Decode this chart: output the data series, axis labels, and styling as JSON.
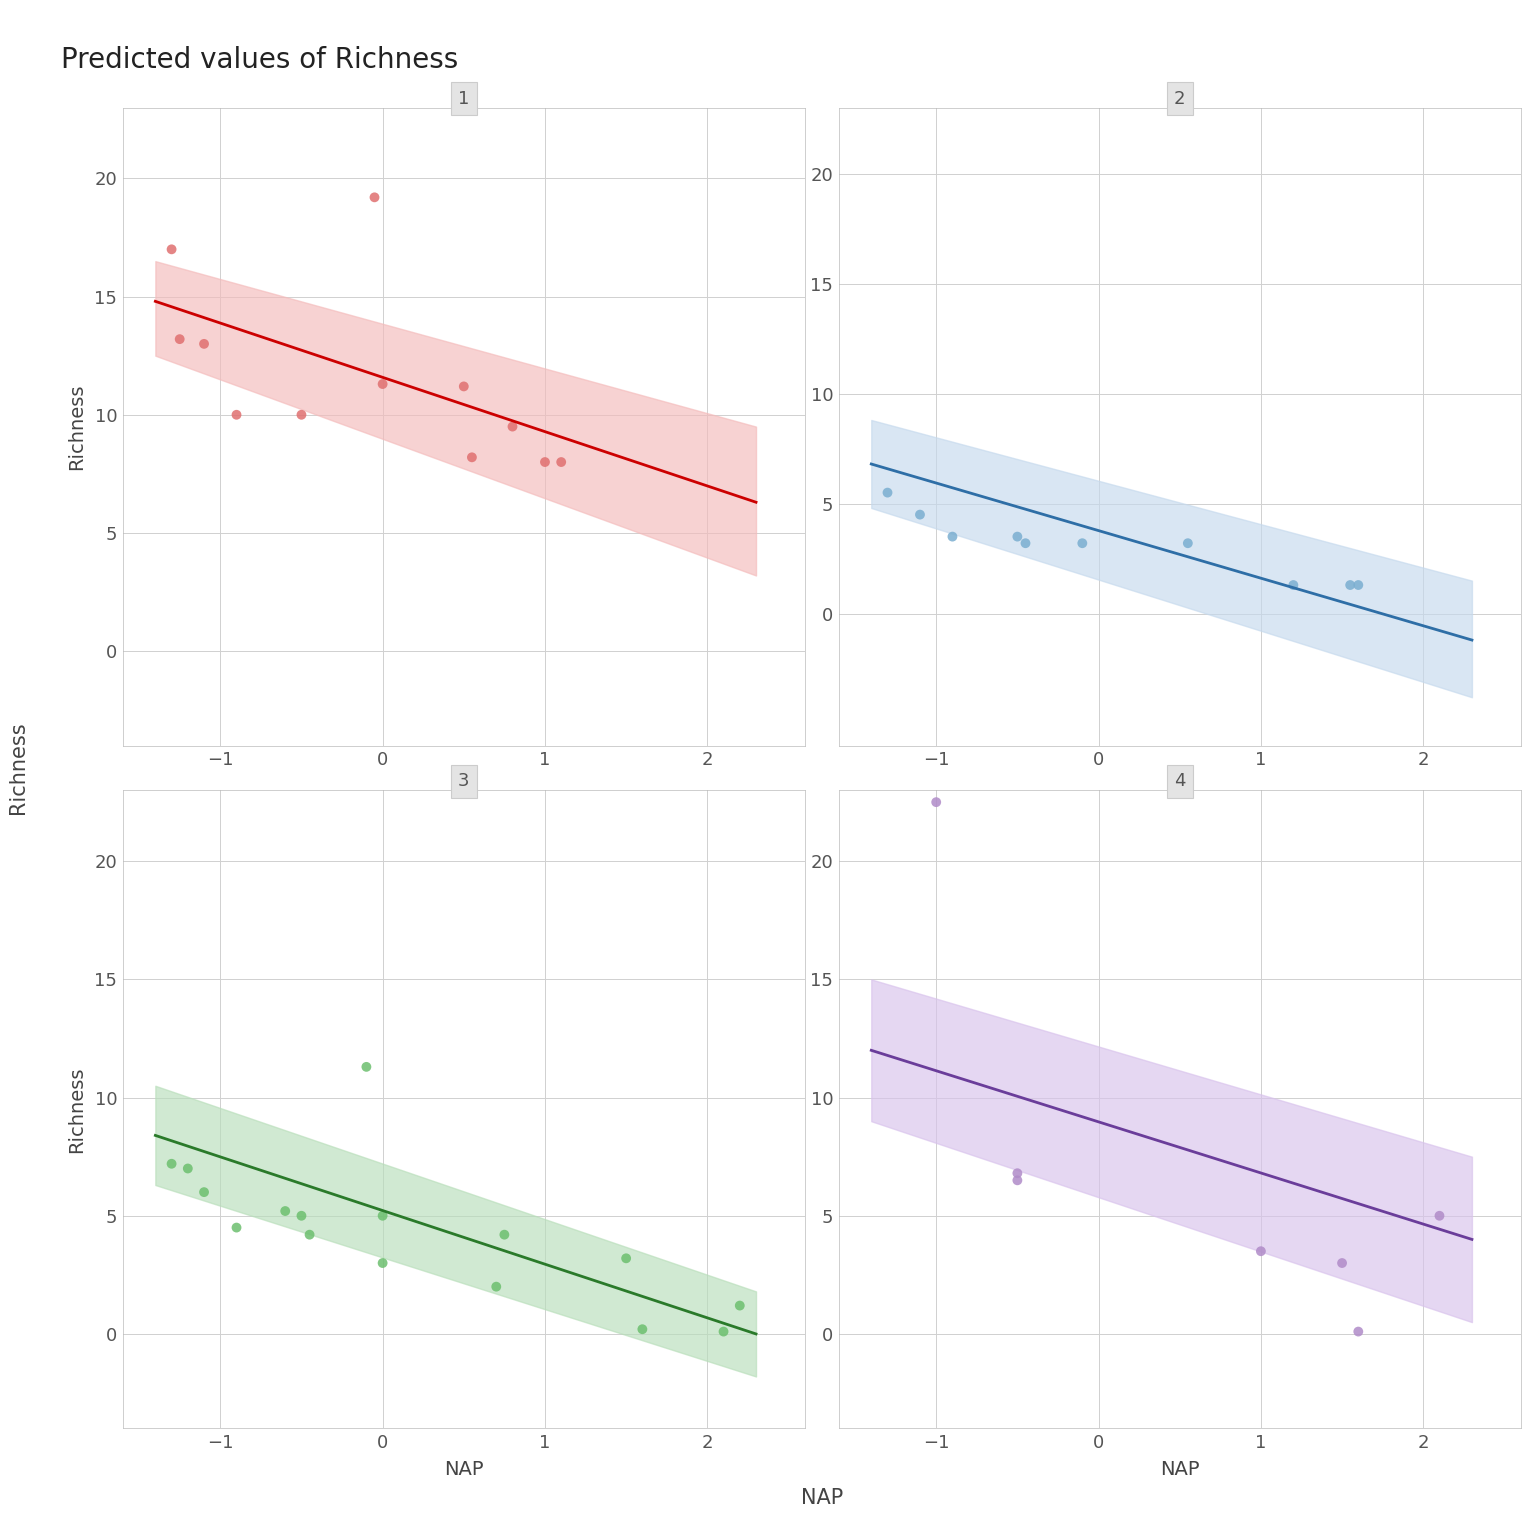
{
  "title": "Predicted values of Richness",
  "xlabel": "NAP",
  "ylabel": "Richness",
  "panels": [
    {
      "label": "1",
      "color_line": "#CC0000",
      "color_ribbon": "#F4BBBB",
      "color_points": "#E07070",
      "scatter_x": [
        -1.3,
        -1.25,
        -1.1,
        -0.9,
        -0.5,
        -0.05,
        0.0,
        0.5,
        0.55,
        0.8,
        1.0,
        1.1
      ],
      "scatter_y": [
        17.0,
        13.2,
        13.0,
        10.0,
        10.0,
        19.2,
        11.3,
        11.2,
        8.2,
        9.5,
        8.0,
        8.0
      ],
      "line_x": [
        -1.4,
        2.3
      ],
      "line_y": [
        14.8,
        6.3
      ],
      "ribbon_upper": [
        16.5,
        9.5
      ],
      "ribbon_lower": [
        12.5,
        3.2
      ],
      "ylim": [
        -4,
        23
      ],
      "yticks": [
        0,
        5,
        10,
        15,
        20
      ]
    },
    {
      "label": "2",
      "color_line": "#2E6EA6",
      "color_ribbon": "#C5D9ED",
      "color_points": "#7AAED0",
      "scatter_x": [
        -1.3,
        -1.1,
        -0.9,
        -0.5,
        -0.45,
        -0.1,
        0.55,
        1.2,
        1.55,
        1.6
      ],
      "scatter_y": [
        5.5,
        4.5,
        3.5,
        3.5,
        3.2,
        3.2,
        3.2,
        1.3,
        1.3,
        1.3
      ],
      "line_x": [
        -1.4,
        2.3
      ],
      "line_y": [
        6.8,
        -1.2
      ],
      "ribbon_upper": [
        8.8,
        1.5
      ],
      "ribbon_lower": [
        4.8,
        -3.8
      ],
      "ylim": [
        -6,
        23
      ],
      "yticks": [
        0,
        5,
        10,
        15,
        20
      ]
    },
    {
      "label": "3",
      "color_line": "#2A7A2A",
      "color_ribbon": "#B8DEBA",
      "color_points": "#6CBF6E",
      "scatter_x": [
        -1.3,
        -1.2,
        -1.1,
        -0.9,
        -0.6,
        -0.5,
        -0.45,
        -0.1,
        0.0,
        0.0,
        0.7,
        0.75,
        1.5,
        1.6,
        2.1,
        2.2
      ],
      "scatter_y": [
        7.2,
        7.0,
        6.0,
        4.5,
        5.2,
        5.0,
        4.2,
        11.3,
        3.0,
        5.0,
        2.0,
        4.2,
        3.2,
        0.2,
        0.1,
        1.2
      ],
      "line_x": [
        -1.4,
        2.3
      ],
      "line_y": [
        8.4,
        0.0
      ],
      "ribbon_upper": [
        10.5,
        1.8
      ],
      "ribbon_lower": [
        6.3,
        -1.8
      ],
      "ylim": [
        -4,
        23
      ],
      "yticks": [
        0,
        5,
        10,
        15,
        20
      ]
    },
    {
      "label": "4",
      "color_line": "#6A3D9A",
      "color_ribbon": "#D8C2EC",
      "color_points": "#B08BC8",
      "scatter_x": [
        -1.0,
        -0.5,
        -0.5,
        1.0,
        1.5,
        1.6,
        2.1
      ],
      "scatter_y": [
        22.5,
        6.5,
        6.8,
        3.5,
        3.0,
        0.1,
        5.0
      ],
      "line_x": [
        -1.4,
        2.3
      ],
      "line_y": [
        12.0,
        4.0
      ],
      "ribbon_upper": [
        15.0,
        7.5
      ],
      "ribbon_lower": [
        9.0,
        0.5
      ],
      "ylim": [
        -4,
        23
      ],
      "yticks": [
        0,
        5,
        10,
        15,
        20
      ]
    }
  ],
  "xlim": [
    -1.6,
    2.6
  ],
  "xticks": [
    -1,
    0,
    1,
    2
  ],
  "background_color": "#FFFFFF",
  "panel_bg": "#FFFFFF",
  "strip_bg": "#E4E4E4",
  "strip_edge": "#CCCCCC",
  "grid_color": "#D0D0D0"
}
